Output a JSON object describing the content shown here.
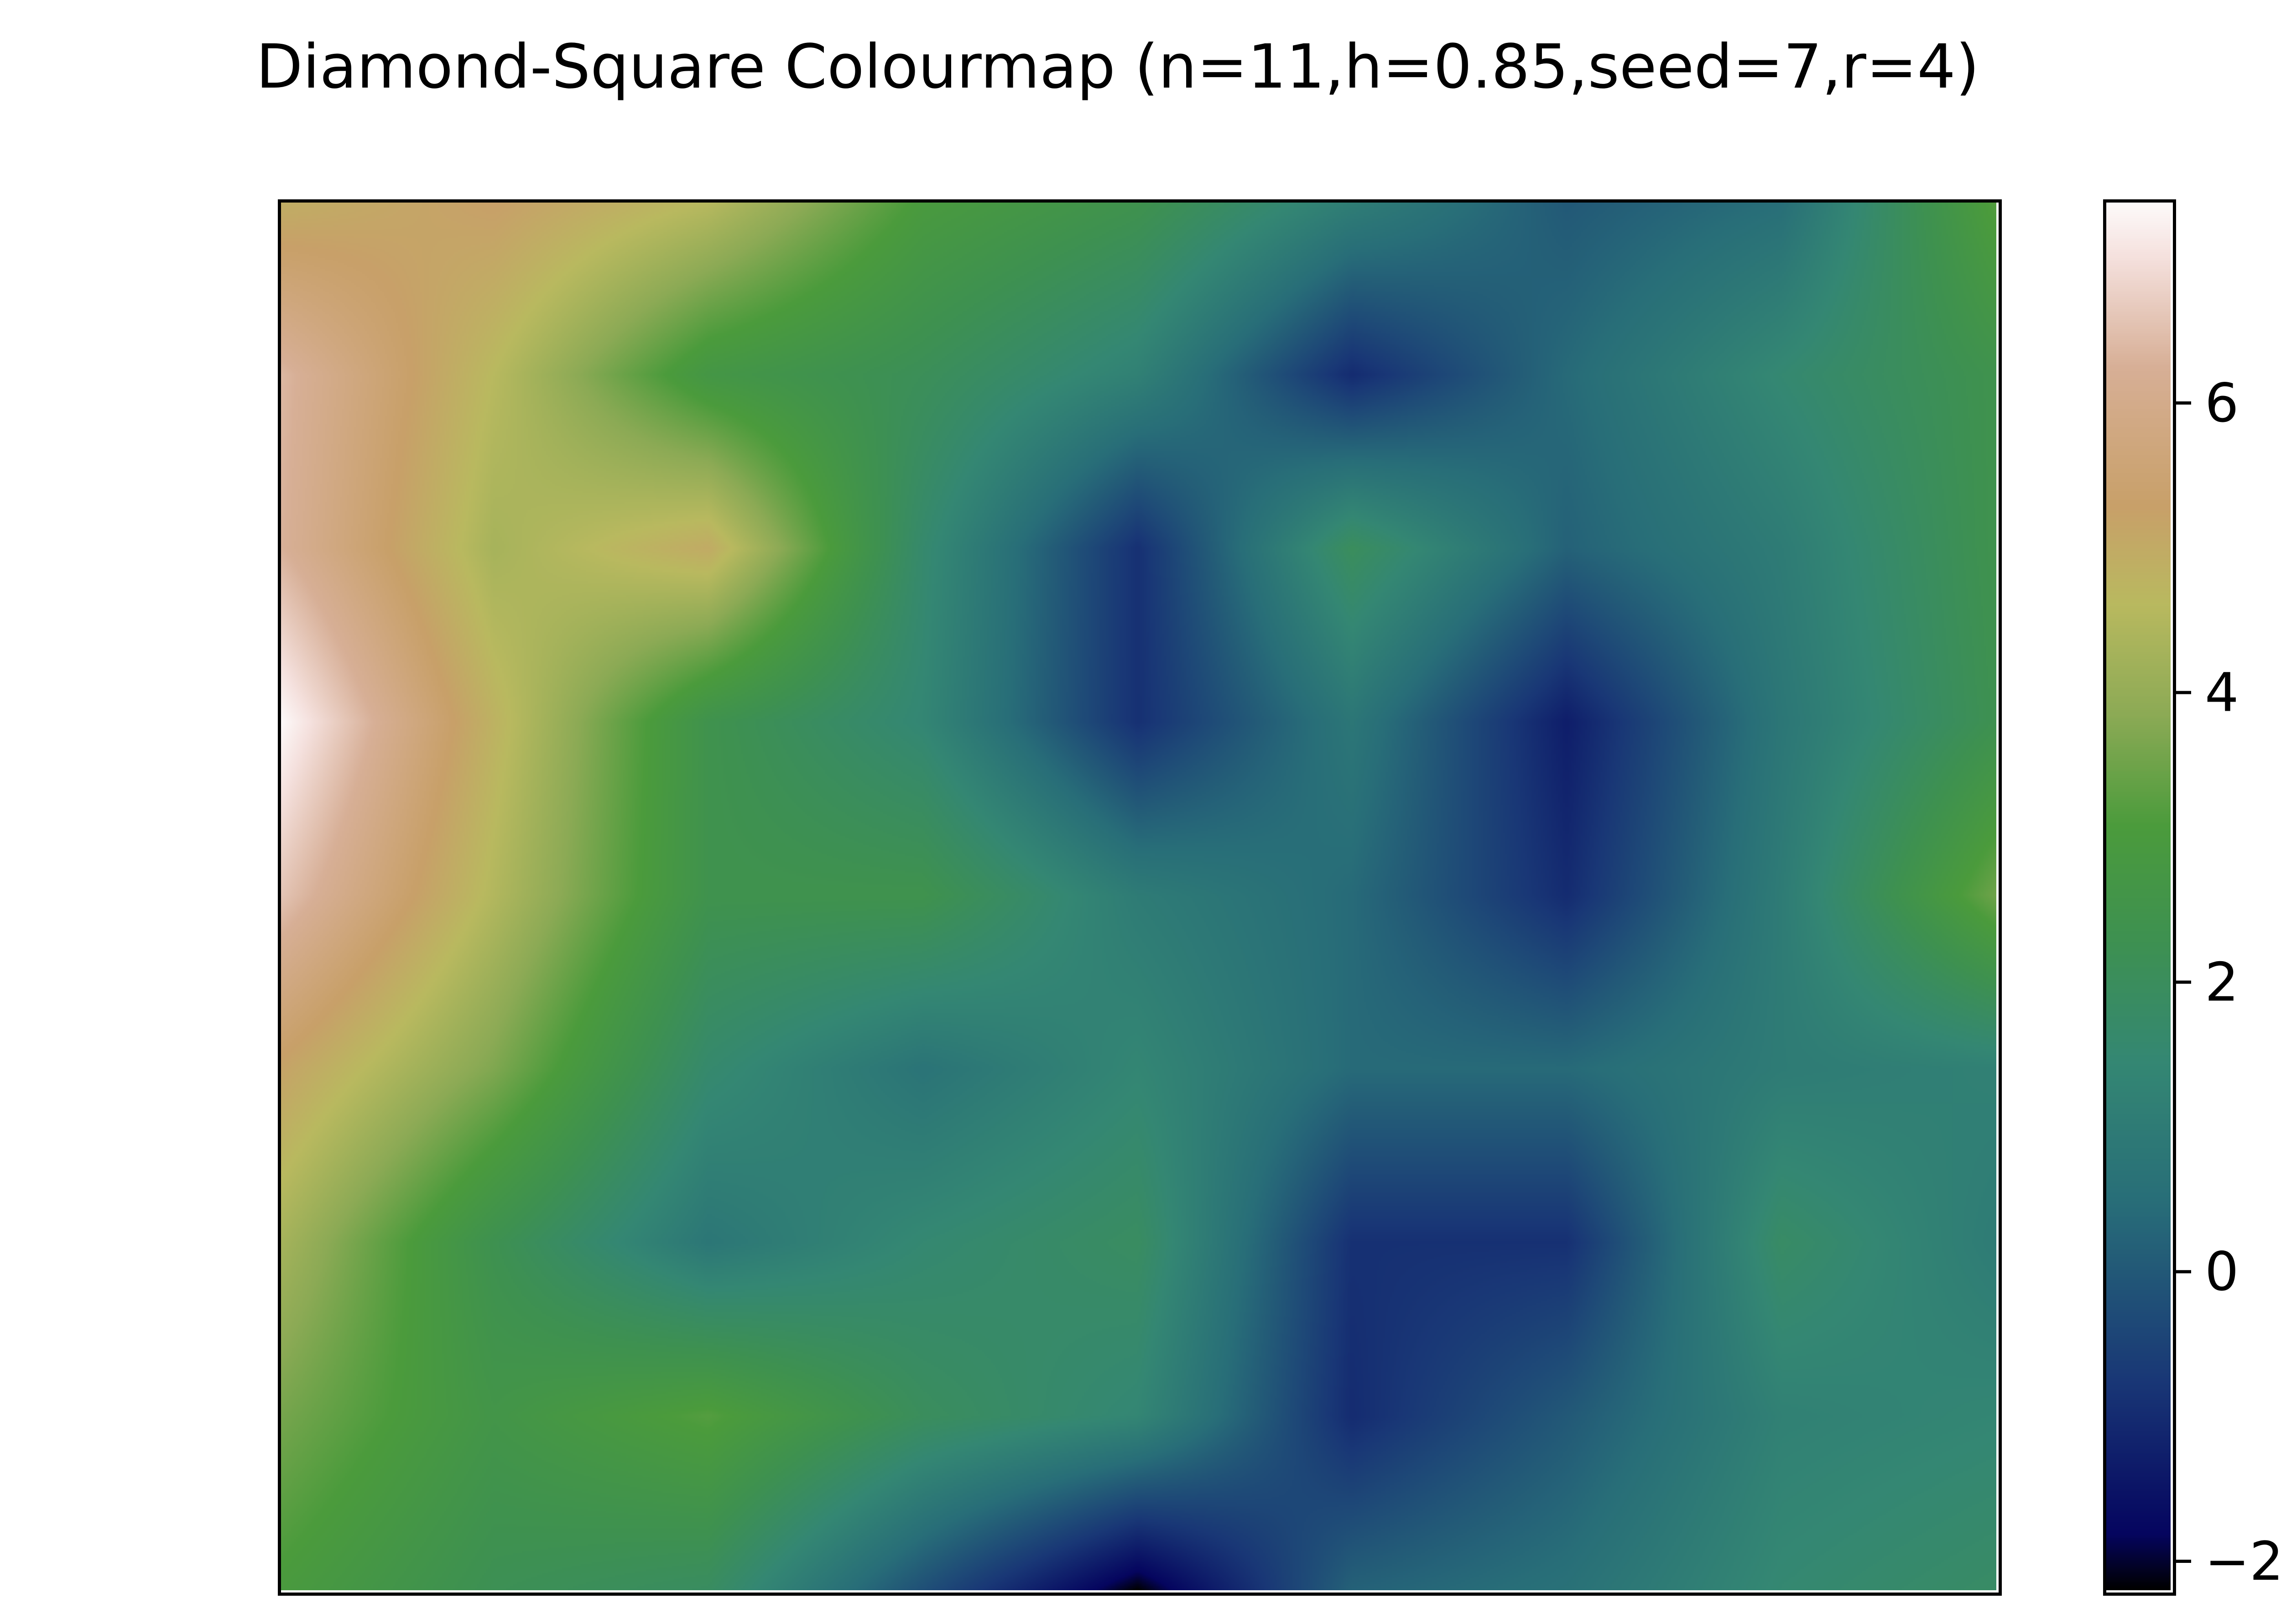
{
  "chart_data": {
    "type": "heatmap",
    "title": "Diamond-Square Colourmap (n=11,h=0.85,seed=7,r=4)",
    "colormap": "gist_earth",
    "vmin": -2.2,
    "vmax": 7.4,
    "grid_rows": 9,
    "grid_cols": 9,
    "values": [
      [
        4.9,
        5.3,
        4.6,
        3.0,
        2.4,
        1.1,
        0.0,
        0.5,
        3.2
      ],
      [
        6.4,
        4.6,
        2.7,
        2.1,
        1.2,
        -1.0,
        0.4,
        1.5,
        2.4
      ],
      [
        6.3,
        4.3,
        5.0,
        1.6,
        -0.9,
        2.0,
        0.2,
        1.0,
        2.4
      ],
      [
        7.4,
        4.8,
        2.4,
        1.4,
        -0.9,
        0.8,
        -1.3,
        0.8,
        2.3
      ],
      [
        6.6,
        4.5,
        2.4,
        2.4,
        1.0,
        0.4,
        -1.0,
        1.0,
        3.5
      ],
      [
        5.2,
        3.7,
        1.6,
        0.7,
        1.4,
        0.4,
        0.4,
        1.0,
        1.2
      ],
      [
        4.3,
        2.3,
        0.8,
        1.5,
        1.9,
        -0.9,
        -0.9,
        1.8,
        1.0
      ],
      [
        3.6,
        2.6,
        3.2,
        2.0,
        1.4,
        -1.0,
        0.0,
        1.2,
        1.4
      ],
      [
        3.0,
        2.2,
        1.9,
        -0.2,
        -2.2,
        0.2,
        0.6,
        1.5,
        1.8
      ]
    ],
    "colorbar": {
      "ticks": [
        -2,
        0,
        2,
        4,
        6
      ],
      "tick_labels": [
        "−2",
        "0",
        "2",
        "4",
        "6"
      ]
    },
    "xlabel": "",
    "ylabel": "",
    "x_ticks_visible": false,
    "y_ticks_visible": false
  }
}
